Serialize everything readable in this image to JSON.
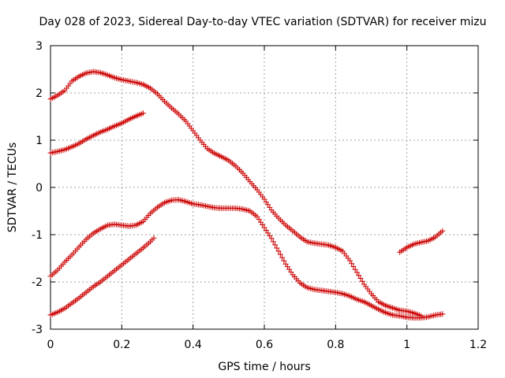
{
  "chart_data": {
    "type": "scatter",
    "title": "Day 028 of 2023, Sidereal Day-to-day VTEC variation (SDTVAR) for receiver mizu",
    "xlabel": "GPS time / hours",
    "ylabel": "SDTVAR / TECUs",
    "xlim": [
      0,
      1.2
    ],
    "ylim": [
      -3,
      3
    ],
    "x_ticks": [
      "0",
      "0.2",
      "0.4",
      "0.6",
      "0.8",
      "1",
      "1.2"
    ],
    "y_ticks": [
      "-3",
      "-2",
      "-1",
      "0",
      "1",
      "2",
      "3"
    ],
    "grid": true,
    "marker": "plus",
    "marker_color": "#cc0000",
    "series": [
      {
        "x": [
          0.0,
          0.02,
          0.04,
          0.06,
          0.08,
          0.1,
          0.12,
          0.14,
          0.16,
          0.18,
          0.2,
          0.22,
          0.24,
          0.26,
          0.28,
          0.3,
          0.32,
          0.34,
          0.36,
          0.38,
          0.4,
          0.42,
          0.44,
          0.46,
          0.48,
          0.5,
          0.52,
          0.54,
          0.56,
          0.58,
          0.6,
          0.62,
          0.64,
          0.66,
          0.68,
          0.7,
          0.72,
          0.74,
          0.76,
          0.78,
          0.8,
          0.82,
          0.84,
          0.86,
          0.88,
          0.9,
          0.92,
          0.94,
          0.96,
          0.98,
          1.0,
          1.02,
          1.04
        ],
        "y": [
          1.87,
          1.95,
          2.05,
          2.25,
          2.35,
          2.42,
          2.45,
          2.43,
          2.38,
          2.32,
          2.28,
          2.25,
          2.22,
          2.18,
          2.1,
          1.98,
          1.82,
          1.68,
          1.55,
          1.4,
          1.2,
          1.0,
          0.82,
          0.72,
          0.65,
          0.57,
          0.45,
          0.3,
          0.12,
          -0.05,
          -0.25,
          -0.48,
          -0.65,
          -0.8,
          -0.92,
          -1.05,
          -1.15,
          -1.18,
          -1.2,
          -1.22,
          -1.27,
          -1.35,
          -1.55,
          -1.8,
          -2.05,
          -2.25,
          -2.42,
          -2.5,
          -2.55,
          -2.6,
          -2.62,
          -2.66,
          -2.72
        ]
      },
      {
        "x": [
          0.0,
          0.02,
          0.04,
          0.06,
          0.08,
          0.1,
          0.12,
          0.14,
          0.16,
          0.18,
          0.2,
          0.22,
          0.24,
          0.26
        ],
        "y": [
          0.73,
          0.76,
          0.8,
          0.86,
          0.93,
          1.02,
          1.1,
          1.17,
          1.23,
          1.3,
          1.36,
          1.44,
          1.51,
          1.57
        ]
      },
      {
        "x": [
          0.0,
          0.02,
          0.04,
          0.06,
          0.08,
          0.1,
          0.12,
          0.14,
          0.16,
          0.18,
          0.2,
          0.22,
          0.24,
          0.26,
          0.28,
          0.3,
          0.32,
          0.34,
          0.36,
          0.38,
          0.4,
          0.42,
          0.44,
          0.46,
          0.48,
          0.5,
          0.52,
          0.54,
          0.56,
          0.58,
          0.6,
          0.62,
          0.64,
          0.66,
          0.68,
          0.7,
          0.72,
          0.74,
          0.76,
          0.78,
          0.8,
          0.82,
          0.84,
          0.86,
          0.88,
          0.9,
          0.92,
          0.94,
          0.96,
          0.98,
          1.0,
          1.02,
          1.04,
          1.06,
          1.08,
          1.1
        ],
        "y": [
          -1.88,
          -1.75,
          -1.58,
          -1.43,
          -1.26,
          -1.1,
          -0.97,
          -0.88,
          -0.8,
          -0.78,
          -0.8,
          -0.82,
          -0.8,
          -0.72,
          -0.55,
          -0.42,
          -0.32,
          -0.27,
          -0.26,
          -0.3,
          -0.35,
          -0.37,
          -0.4,
          -0.43,
          -0.44,
          -0.44,
          -0.44,
          -0.46,
          -0.5,
          -0.62,
          -0.85,
          -1.08,
          -1.35,
          -1.62,
          -1.85,
          -2.02,
          -2.12,
          -2.16,
          -2.18,
          -2.2,
          -2.22,
          -2.25,
          -2.3,
          -2.37,
          -2.42,
          -2.5,
          -2.58,
          -2.65,
          -2.7,
          -2.72,
          -2.75,
          -2.76,
          -2.76,
          -2.74,
          -2.7,
          -2.68
        ]
      },
      {
        "x": [
          0.0,
          0.02,
          0.04,
          0.06,
          0.08,
          0.1,
          0.12,
          0.14,
          0.16,
          0.18,
          0.2,
          0.22,
          0.24,
          0.26,
          0.28,
          0.29
        ],
        "y": [
          -2.7,
          -2.64,
          -2.56,
          -2.45,
          -2.34,
          -2.22,
          -2.1,
          -2.0,
          -1.88,
          -1.76,
          -1.64,
          -1.52,
          -1.4,
          -1.28,
          -1.15,
          -1.07
        ]
      },
      {
        "x": [
          0.98,
          1.0,
          1.02,
          1.04,
          1.06,
          1.08,
          1.1
        ],
        "y": [
          -1.37,
          -1.27,
          -1.2,
          -1.16,
          -1.13,
          -1.05,
          -0.92
        ]
      }
    ]
  }
}
